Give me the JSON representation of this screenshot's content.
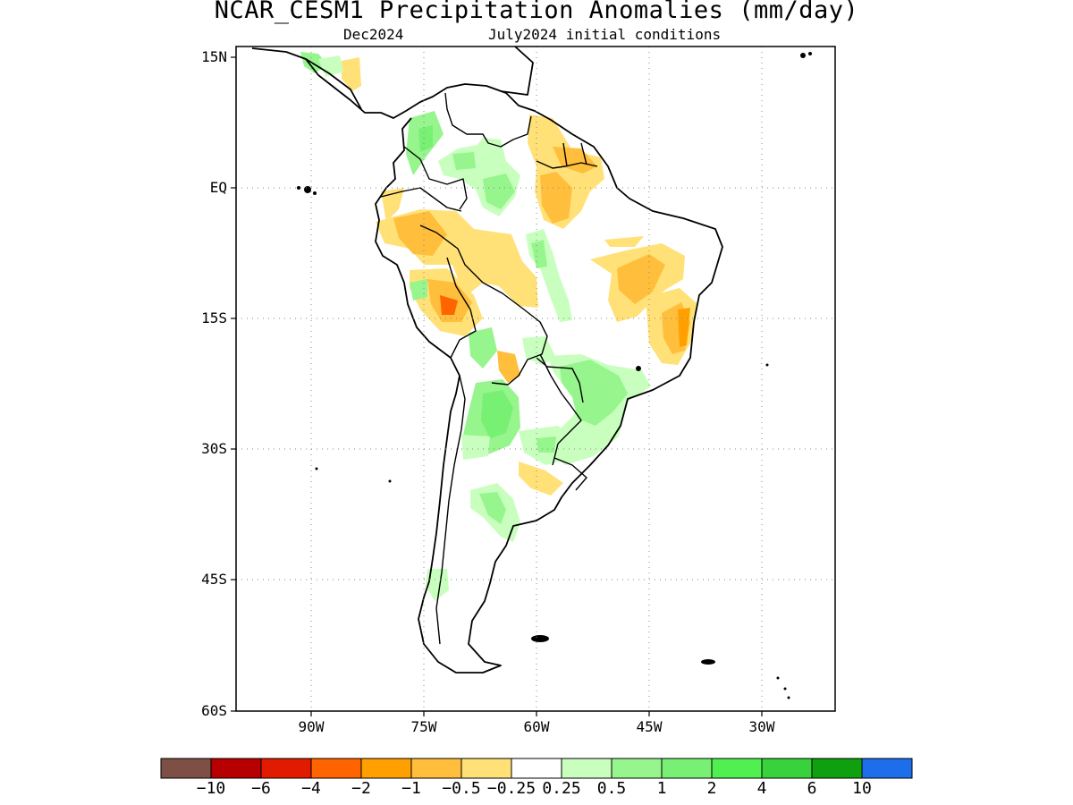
{
  "title": "NCAR_CESM1 Precipitation Anomalies (mm/day)",
  "subtitle_left": "Dec2024",
  "subtitle_right": "July2024 initial conditions",
  "map": {
    "region": "South America",
    "lat_range": [
      "60S",
      "15N"
    ],
    "lon_range": [
      "100W",
      "20W"
    ],
    "grid": "dotted",
    "lat_labels": [
      "15N",
      "EQ",
      "15S",
      "30S",
      "45S",
      "60S"
    ],
    "lon_labels": [
      "90W",
      "75W",
      "60W",
      "45W",
      "30W"
    ]
  },
  "colorbar": {
    "colors": [
      "#7d4f45",
      "#b70000",
      "#e11b00",
      "#ff6400",
      "#ffa000",
      "#ffbe3c",
      "#ffe178",
      "#ffffff",
      "#c8ffbe",
      "#96f58c",
      "#78f073",
      "#50f050",
      "#37d23c",
      "#0fa00f",
      "#1e6eeb"
    ],
    "labels": [
      "−10",
      "−6",
      "−4",
      "−2",
      "−1",
      "−0.5",
      "−0.25",
      "0.25",
      "0.5",
      "1",
      "2",
      "4",
      "6",
      "10"
    ]
  }
}
